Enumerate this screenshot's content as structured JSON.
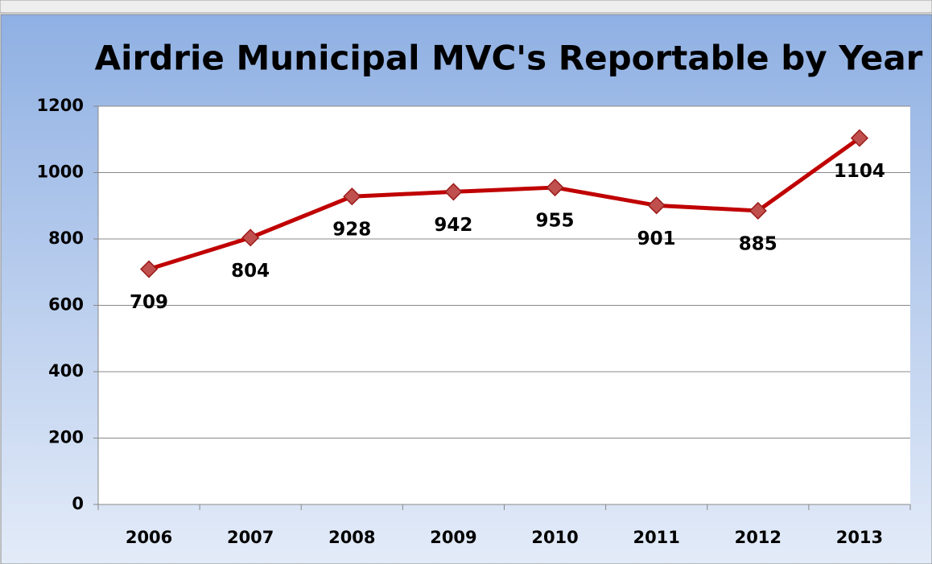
{
  "chart_data": {
    "type": "line",
    "title": "Airdrie Municipal MVC's Reportable by Year",
    "categories": [
      "2006",
      "2007",
      "2008",
      "2009",
      "2010",
      "2011",
      "2012",
      "2013"
    ],
    "values": [
      709,
      804,
      928,
      942,
      955,
      901,
      885,
      1104
    ],
    "color": "#c00000",
    "ylim": [
      0,
      1200
    ],
    "yticks": [
      0,
      200,
      400,
      600,
      800,
      1000,
      1200
    ],
    "grid": true
  }
}
